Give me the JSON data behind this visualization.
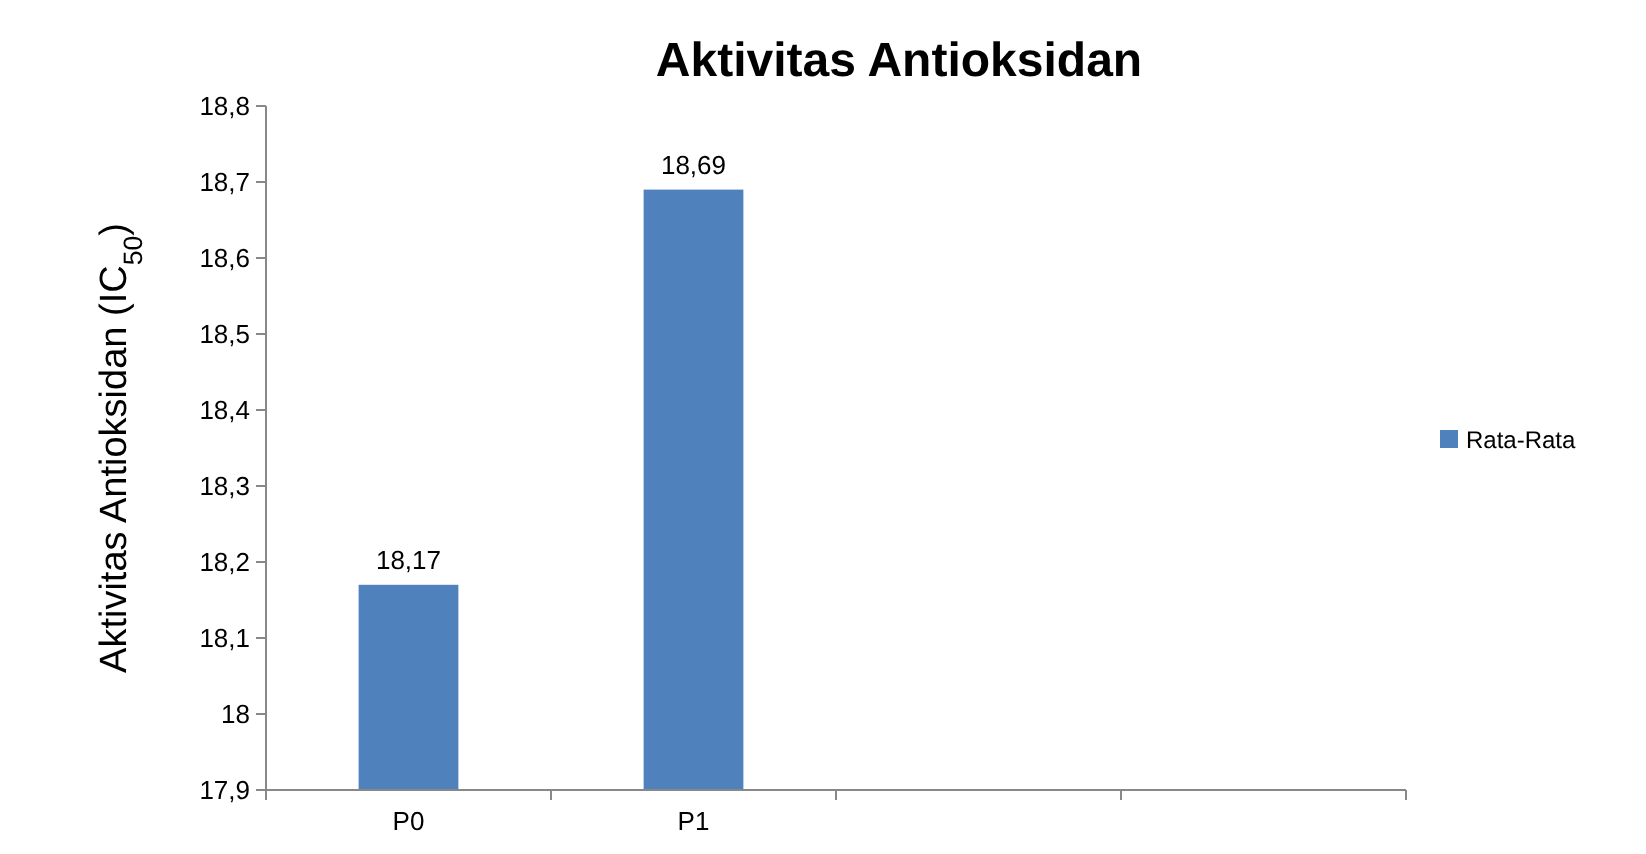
{
  "chart_data": {
    "type": "bar",
    "title": "Aktivitas Antioksidan",
    "ylabel": "Aktivitas Antioksidan (IC$_{50}$)",
    "categories": [
      "P0",
      "P1",
      null,
      null
    ],
    "series": [
      {
        "name": "Rata-Rata",
        "color": "#4f81bd",
        "values": [
          18.17,
          18.69,
          null,
          null
        ],
        "value_labels": [
          "18,17",
          "18,69",
          null,
          null
        ]
      }
    ],
    "ylim": [
      17.9,
      18.8
    ],
    "yticks": [
      {
        "value": 17.9,
        "label": "17,9"
      },
      {
        "value": 18,
        "label": "18"
      },
      {
        "value": 18.1,
        "label": "18,1"
      },
      {
        "value": 18.2,
        "label": "18,2"
      },
      {
        "value": 18.3,
        "label": "18,3"
      },
      {
        "value": 18.4,
        "label": "18,4"
      },
      {
        "value": 18.5,
        "label": "18,5"
      },
      {
        "value": 18.6,
        "label": "18,6"
      },
      {
        "value": 18.7,
        "label": "18,7"
      },
      {
        "value": 18.8,
        "label": "18,8"
      }
    ],
    "grid": false,
    "legend": "right"
  }
}
